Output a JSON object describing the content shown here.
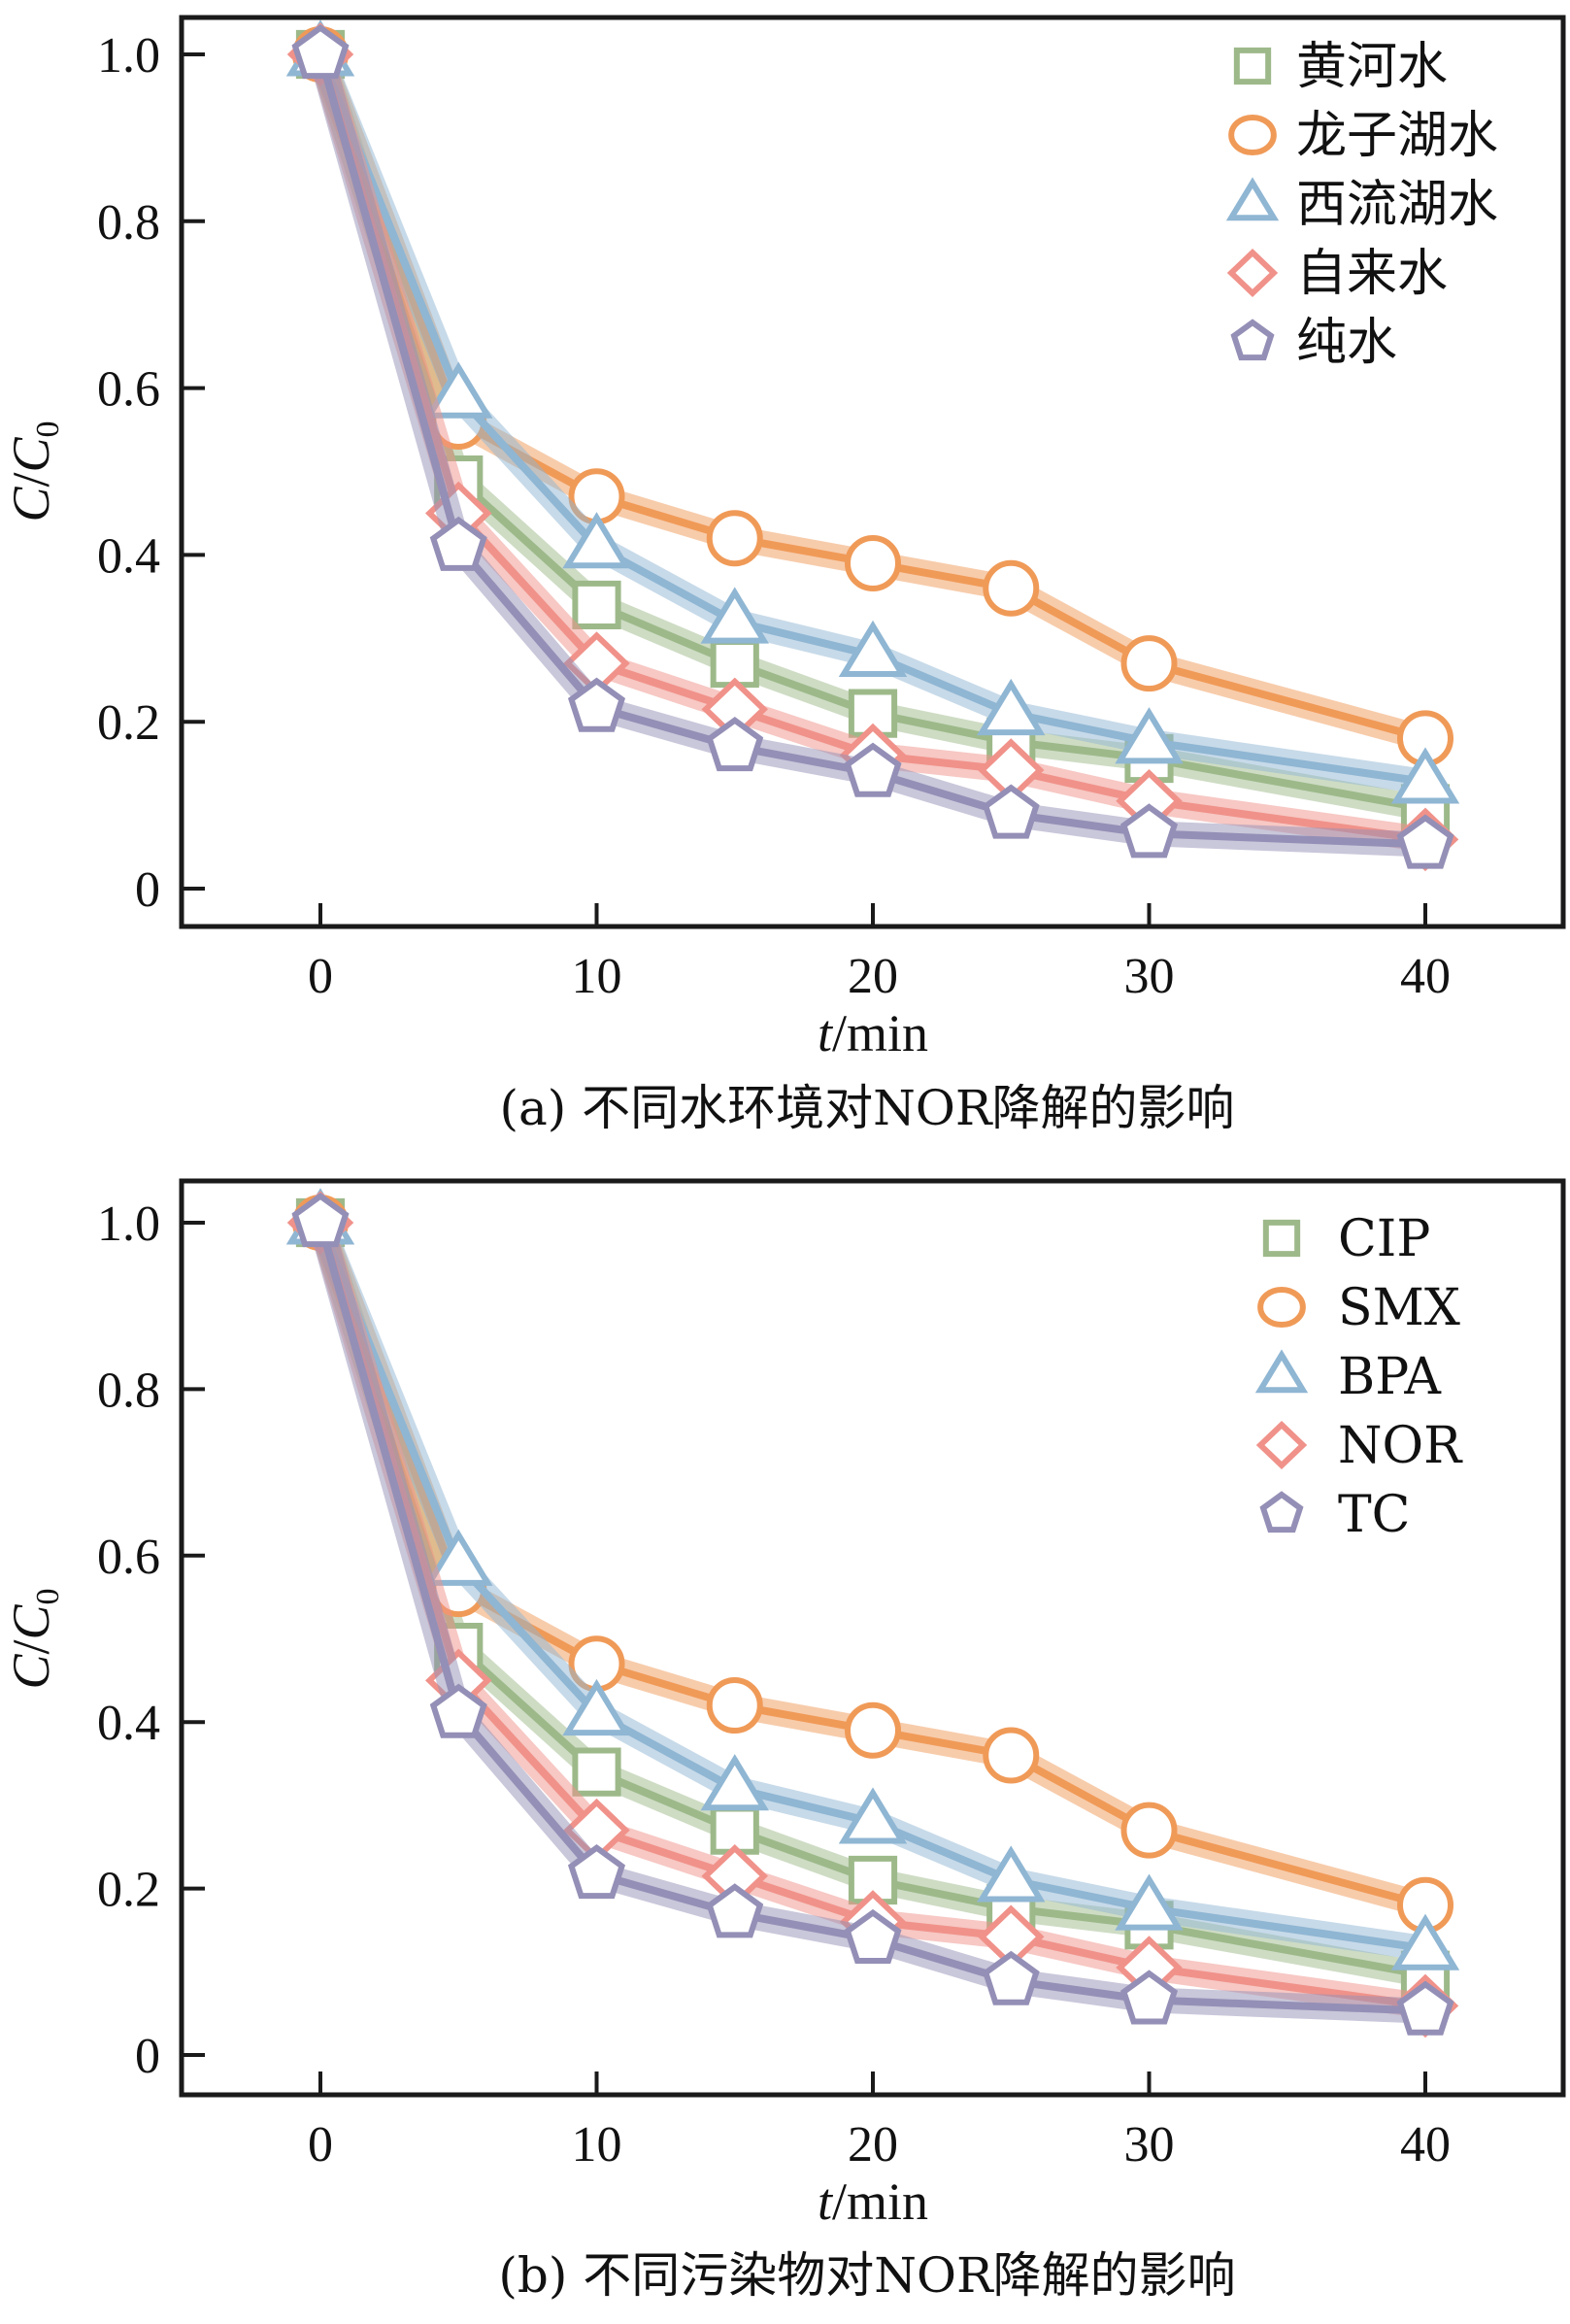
{
  "chart_data": [
    {
      "type": "line",
      "caption": "(a) 不同水环境对NOR降解的影响",
      "xlabel_italic": "t",
      "xlabel_rest": "/min",
      "ylabel_c": "C",
      "ylabel_slash": "/",
      "ylabel_c0": "C",
      "ylabel_sub": "0",
      "xlim": [
        -5,
        45
      ],
      "ylim": [
        -0.045,
        1.025
      ],
      "xticks": [
        0,
        10,
        20,
        30,
        40
      ],
      "xtick_labels": [
        "0",
        "10",
        "20",
        "30",
        "40"
      ],
      "yticks": [
        0,
        0.2,
        0.4,
        0.6,
        0.8,
        1.0
      ],
      "ytick_labels": [
        "0",
        "0.2",
        "0.4",
        "0.6",
        "0.8",
        "1.0"
      ],
      "grid": false,
      "legend_position": "top-right",
      "x": [
        0,
        5,
        10,
        15,
        20,
        25,
        30,
        40
      ],
      "series": [
        {
          "name": "黄河水",
          "marker": "square",
          "color": "#9db98a",
          "values": [
            1.0,
            0.49,
            0.34,
            0.27,
            0.21,
            0.176,
            0.156,
            0.096
          ]
        },
        {
          "name": "龙子湖水",
          "marker": "circle",
          "color": "#f09a58",
          "values": [
            1.0,
            0.56,
            0.47,
            0.42,
            0.39,
            0.36,
            0.27,
            0.18
          ]
        },
        {
          "name": "西流湖水",
          "marker": "triangle",
          "color": "#8fb6d3",
          "values": [
            1.0,
            0.59,
            0.41,
            0.32,
            0.28,
            0.21,
            0.176,
            0.128
          ]
        },
        {
          "name": "自来水",
          "marker": "diamond",
          "color": "#f0928a",
          "values": [
            1.0,
            0.45,
            0.27,
            0.215,
            0.16,
            0.142,
            0.105,
            0.059
          ]
        },
        {
          "name": "纯水",
          "marker": "pentagon",
          "color": "#948fb6",
          "values": [
            1.0,
            0.41,
            0.217,
            0.17,
            0.139,
            0.089,
            0.066,
            0.053
          ]
        }
      ]
    },
    {
      "type": "line",
      "caption": "(b) 不同污染物对NOR降解的影响",
      "xlabel_italic": "t",
      "xlabel_rest": "/min",
      "ylabel_c": "C",
      "ylabel_slash": "/",
      "ylabel_c0": "C",
      "ylabel_sub": "0",
      "xlim": [
        -5,
        45
      ],
      "ylim": [
        -0.045,
        1.025
      ],
      "xticks": [
        0,
        10,
        20,
        30,
        40
      ],
      "xtick_labels": [
        "0",
        "10",
        "20",
        "30",
        "40"
      ],
      "yticks": [
        0,
        0.2,
        0.4,
        0.6,
        0.8,
        1.0
      ],
      "ytick_labels": [
        "0",
        "0.2",
        "0.4",
        "0.6",
        "0.8",
        "1.0"
      ],
      "grid": false,
      "legend_position": "top-right",
      "x": [
        0,
        5,
        10,
        15,
        20,
        25,
        30,
        40
      ],
      "series": [
        {
          "name": "CIP",
          "marker": "square",
          "color": "#9db98a",
          "values": [
            1.0,
            0.49,
            0.34,
            0.27,
            0.21,
            0.176,
            0.156,
            0.096
          ]
        },
        {
          "name": "SMX",
          "marker": "circle",
          "color": "#f09a58",
          "values": [
            1.0,
            0.56,
            0.47,
            0.42,
            0.39,
            0.36,
            0.27,
            0.18
          ]
        },
        {
          "name": "BPA",
          "marker": "triangle",
          "color": "#8fb6d3",
          "values": [
            1.0,
            0.59,
            0.41,
            0.32,
            0.28,
            0.21,
            0.176,
            0.128
          ]
        },
        {
          "name": "NOR",
          "marker": "diamond",
          "color": "#f0928a",
          "values": [
            1.0,
            0.45,
            0.27,
            0.215,
            0.16,
            0.142,
            0.105,
            0.059
          ]
        },
        {
          "name": "TC",
          "marker": "pentagon",
          "color": "#948fb6",
          "values": [
            1.0,
            0.41,
            0.217,
            0.17,
            0.139,
            0.089,
            0.066,
            0.053
          ]
        }
      ]
    }
  ]
}
